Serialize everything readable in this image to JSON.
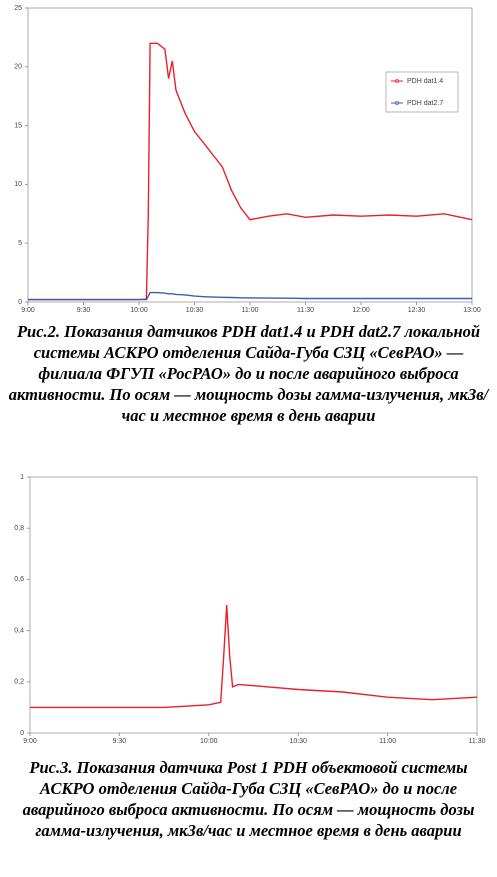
{
  "chart_data": [
    {
      "type": "line",
      "x": [
        "9:00",
        "9:30",
        "10:00",
        "10:04",
        "10:05",
        "10:06",
        "10:10",
        "10:14",
        "10:16",
        "10:18",
        "10:20",
        "10:25",
        "10:30",
        "10:35",
        "10:40",
        "10:45",
        "10:50",
        "10:55",
        "11:00",
        "11:10",
        "11:20",
        "11:30",
        "11:45",
        "12:00",
        "12:15",
        "12:30",
        "12:45",
        "13:00"
      ],
      "series": [
        {
          "name": "PDH dat1.4",
          "color": "#e8202a",
          "values": [
            0.2,
            0.2,
            0.2,
            0.25,
            7.5,
            22,
            22,
            21.5,
            19,
            20.5,
            18,
            16,
            14.5,
            13.5,
            12.5,
            11.5,
            9.5,
            8,
            7,
            7.3,
            7.5,
            7.2,
            7.4,
            7.3,
            7.4,
            7.3,
            7.5,
            7.0
          ]
        },
        {
          "name": "PDH dat2.7",
          "color": "#3a5fa8",
          "values": [
            0.2,
            0.2,
            0.2,
            0.2,
            0.5,
            0.8,
            0.8,
            0.75,
            0.7,
            0.7,
            0.65,
            0.6,
            0.5,
            0.45,
            0.42,
            0.4,
            0.38,
            0.36,
            0.35,
            0.33,
            0.32,
            0.3,
            0.3,
            0.3,
            0.3,
            0.3,
            0.3,
            0.3
          ]
        }
      ],
      "xlim": [
        "9:00",
        "13:00"
      ],
      "xticks": [
        "9:00",
        "9:30",
        "10:00",
        "10:30",
        "11:00",
        "11:30",
        "12:00",
        "12:30",
        "13:00"
      ],
      "ylim": [
        0,
        25
      ],
      "yticks": [
        0,
        5,
        10,
        15,
        20,
        25
      ],
      "legend": "upper right",
      "caption": "Рис.2. Показания датчиков PDH dat1.4 и PDH dat2.7 локальной системы АСКРО отделения Сайда-Губа СЗЦ «СевРАО» — филиала ФГУП «РосРАО» до и после аварийного выброса активности. По осям — мощность дозы гамма-излучения, мкЗв/час и местное время в день аварии"
    },
    {
      "type": "line",
      "x": [
        "9:00",
        "9:15",
        "9:30",
        "9:45",
        "10:00",
        "10:04",
        "10:05",
        "10:06",
        "10:07",
        "10:08",
        "10:10",
        "10:20",
        "10:30",
        "10:45",
        "11:00",
        "11:15",
        "11:30"
      ],
      "series": [
        {
          "color": "#e8202a",
          "values": [
            0.1,
            0.1,
            0.1,
            0.1,
            0.11,
            0.12,
            0.3,
            0.5,
            0.3,
            0.18,
            0.19,
            0.18,
            0.17,
            0.16,
            0.14,
            0.13,
            0.14
          ]
        }
      ],
      "xlim": [
        "9:00",
        "11:30"
      ],
      "xticks": [
        "9:00",
        "9:30",
        "10:00",
        "10:30",
        "11:00",
        "11:30"
      ],
      "ylim": [
        0,
        1
      ],
      "yticks": [
        0,
        {
          "value": 0.2,
          "label": "0,2"
        },
        {
          "value": 0.4,
          "label": "0,4"
        },
        {
          "value": 0.6,
          "label": "0,6"
        },
        {
          "value": 0.8,
          "label": "0,8"
        },
        1
      ],
      "caption": "Рис.3. Показания датчика Post 1 PDH объектовой системы АСКРО отделения Сайда-Губа СЗЦ «СевРАО» до и после аварийного выброса активности. По осям — мощность дозы гамма-излучения, мкЗв/час и местное время в день аварии"
    }
  ]
}
